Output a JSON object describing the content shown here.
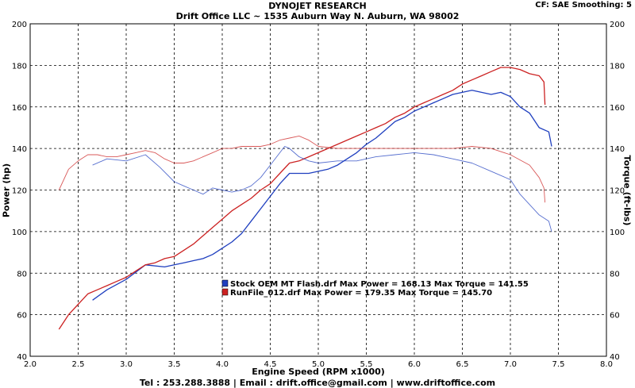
{
  "header": {
    "title": "DYNOJET RESEARCH",
    "subtitle": "Drift Office LLC ~ 1535 Auburn Way N. Auburn, WA 98002",
    "cf_info": "CF: SAE   Smoothing: 5"
  },
  "footer": "Tel : 253.288.3888 | Email : drift.office@gmail.com | www.driftoffice.com",
  "chart_data": {
    "type": "line",
    "xlabel": "Engine Speed (RPM x1000)",
    "ylabel": "Power (hp)",
    "ylabel_right": "Torque (ft-lbs)",
    "xlim": [
      2.0,
      8.0
    ],
    "ylim": [
      40,
      200
    ],
    "ylim_right": [
      40,
      200
    ],
    "xticks": [
      "2.0",
      "2.5",
      "3.0",
      "3.5",
      "4.0",
      "4.5",
      "5.0",
      "5.5",
      "6.0",
      "6.5",
      "7.0",
      "7.5",
      "8.0"
    ],
    "yticks": [
      "40",
      "60",
      "80",
      "100",
      "120",
      "140",
      "160",
      "180",
      "200"
    ],
    "grid": true,
    "legend_position": "center",
    "legend": [
      {
        "label": "Stock OEM MT Flash.drf Max Power = 168.13     Max Torque = 141.55",
        "color": "#1f3fbf"
      },
      {
        "label": "RunFile_012.drf Max Power = 179.35     Max Torque = 145.70",
        "color": "#cc2222"
      }
    ],
    "series": [
      {
        "name": "Stock OEM MT Flash.drf",
        "quantity": "power",
        "color": "#1f3fbf",
        "x": [
          2.65,
          2.8,
          3.0,
          3.2,
          3.4,
          3.5,
          3.6,
          3.7,
          3.8,
          3.9,
          4.0,
          4.1,
          4.2,
          4.3,
          4.4,
          4.5,
          4.6,
          4.7,
          4.8,
          4.9,
          5.0,
          5.1,
          5.2,
          5.3,
          5.4,
          5.5,
          5.6,
          5.7,
          5.8,
          5.9,
          6.0,
          6.1,
          6.2,
          6.3,
          6.4,
          6.5,
          6.6,
          6.7,
          6.8,
          6.9,
          7.0,
          7.1,
          7.2,
          7.3,
          7.4,
          7.43
        ],
        "y": [
          67,
          72,
          77,
          84,
          83,
          84,
          85,
          86,
          87,
          89,
          92,
          95,
          99,
          105,
          111,
          117,
          123,
          128,
          128,
          128,
          129,
          130,
          132,
          135,
          138,
          142,
          145,
          149,
          153,
          155,
          158,
          160,
          162,
          164,
          166,
          167,
          168,
          167,
          166,
          167,
          165,
          160,
          157,
          150,
          148,
          141
        ]
      },
      {
        "name": "RunFile_012.drf",
        "quantity": "power",
        "color": "#cc2222",
        "x": [
          2.3,
          2.4,
          2.5,
          2.6,
          2.7,
          2.8,
          2.9,
          3.0,
          3.1,
          3.2,
          3.3,
          3.4,
          3.5,
          3.6,
          3.7,
          3.8,
          3.9,
          4.0,
          4.1,
          4.2,
          4.3,
          4.4,
          4.5,
          4.6,
          4.7,
          4.8,
          4.9,
          5.0,
          5.1,
          5.2,
          5.3,
          5.4,
          5.5,
          5.6,
          5.7,
          5.8,
          5.9,
          6.0,
          6.1,
          6.2,
          6.3,
          6.4,
          6.5,
          6.6,
          6.7,
          6.8,
          6.9,
          7.0,
          7.1,
          7.2,
          7.3,
          7.35,
          7.36
        ],
        "y": [
          53,
          60,
          65,
          70,
          72,
          74,
          76,
          78,
          81,
          84,
          85,
          87,
          88,
          91,
          94,
          98,
          102,
          106,
          110,
          113,
          116,
          120,
          123,
          128,
          133,
          134,
          136,
          138,
          140,
          142,
          144,
          146,
          148,
          150,
          152,
          155,
          157,
          160,
          162,
          164,
          166,
          168,
          171,
          173,
          175,
          177,
          179,
          179,
          178,
          176,
          175,
          172,
          161
        ]
      },
      {
        "name": "Stock OEM MT Flash.drf",
        "quantity": "torque",
        "color": "#1f3fbf",
        "x": [
          2.65,
          2.8,
          3.0,
          3.2,
          3.35,
          3.5,
          3.6,
          3.7,
          3.8,
          3.9,
          4.0,
          4.1,
          4.2,
          4.3,
          4.4,
          4.5,
          4.6,
          4.65,
          4.7,
          4.8,
          4.9,
          5.0,
          5.2,
          5.4,
          5.6,
          5.8,
          6.0,
          6.2,
          6.4,
          6.6,
          6.8,
          7.0,
          7.1,
          7.2,
          7.3,
          7.4,
          7.43
        ],
        "y": [
          132,
          135,
          134,
          137,
          131,
          124,
          122,
          120,
          118,
          121,
          120,
          119,
          120,
          122,
          126,
          132,
          138,
          141,
          140,
          136,
          134,
          133,
          134,
          134,
          136,
          137,
          138,
          137,
          135,
          133,
          129,
          125,
          118,
          113,
          108,
          105,
          100
        ]
      },
      {
        "name": "RunFile_012.drf",
        "quantity": "torque",
        "color": "#cc2222",
        "x": [
          2.3,
          2.4,
          2.5,
          2.6,
          2.7,
          2.8,
          2.9,
          3.0,
          3.1,
          3.2,
          3.3,
          3.4,
          3.5,
          3.6,
          3.7,
          3.8,
          3.9,
          4.0,
          4.1,
          4.2,
          4.3,
          4.4,
          4.5,
          4.6,
          4.7,
          4.8,
          4.9,
          5.0,
          5.2,
          5.4,
          5.6,
          5.8,
          6.0,
          6.2,
          6.4,
          6.6,
          6.8,
          7.0,
          7.2,
          7.3,
          7.35,
          7.36
        ],
        "y": [
          120,
          130,
          134,
          137,
          137,
          136,
          136,
          137,
          138,
          139,
          138,
          135,
          133,
          133,
          134,
          136,
          138,
          140,
          140,
          141,
          141,
          141,
          142,
          144,
          145,
          146,
          144,
          141,
          140,
          140,
          140,
          140,
          140,
          140,
          140,
          141,
          140,
          137,
          132,
          126,
          121,
          114
        ]
      }
    ]
  }
}
